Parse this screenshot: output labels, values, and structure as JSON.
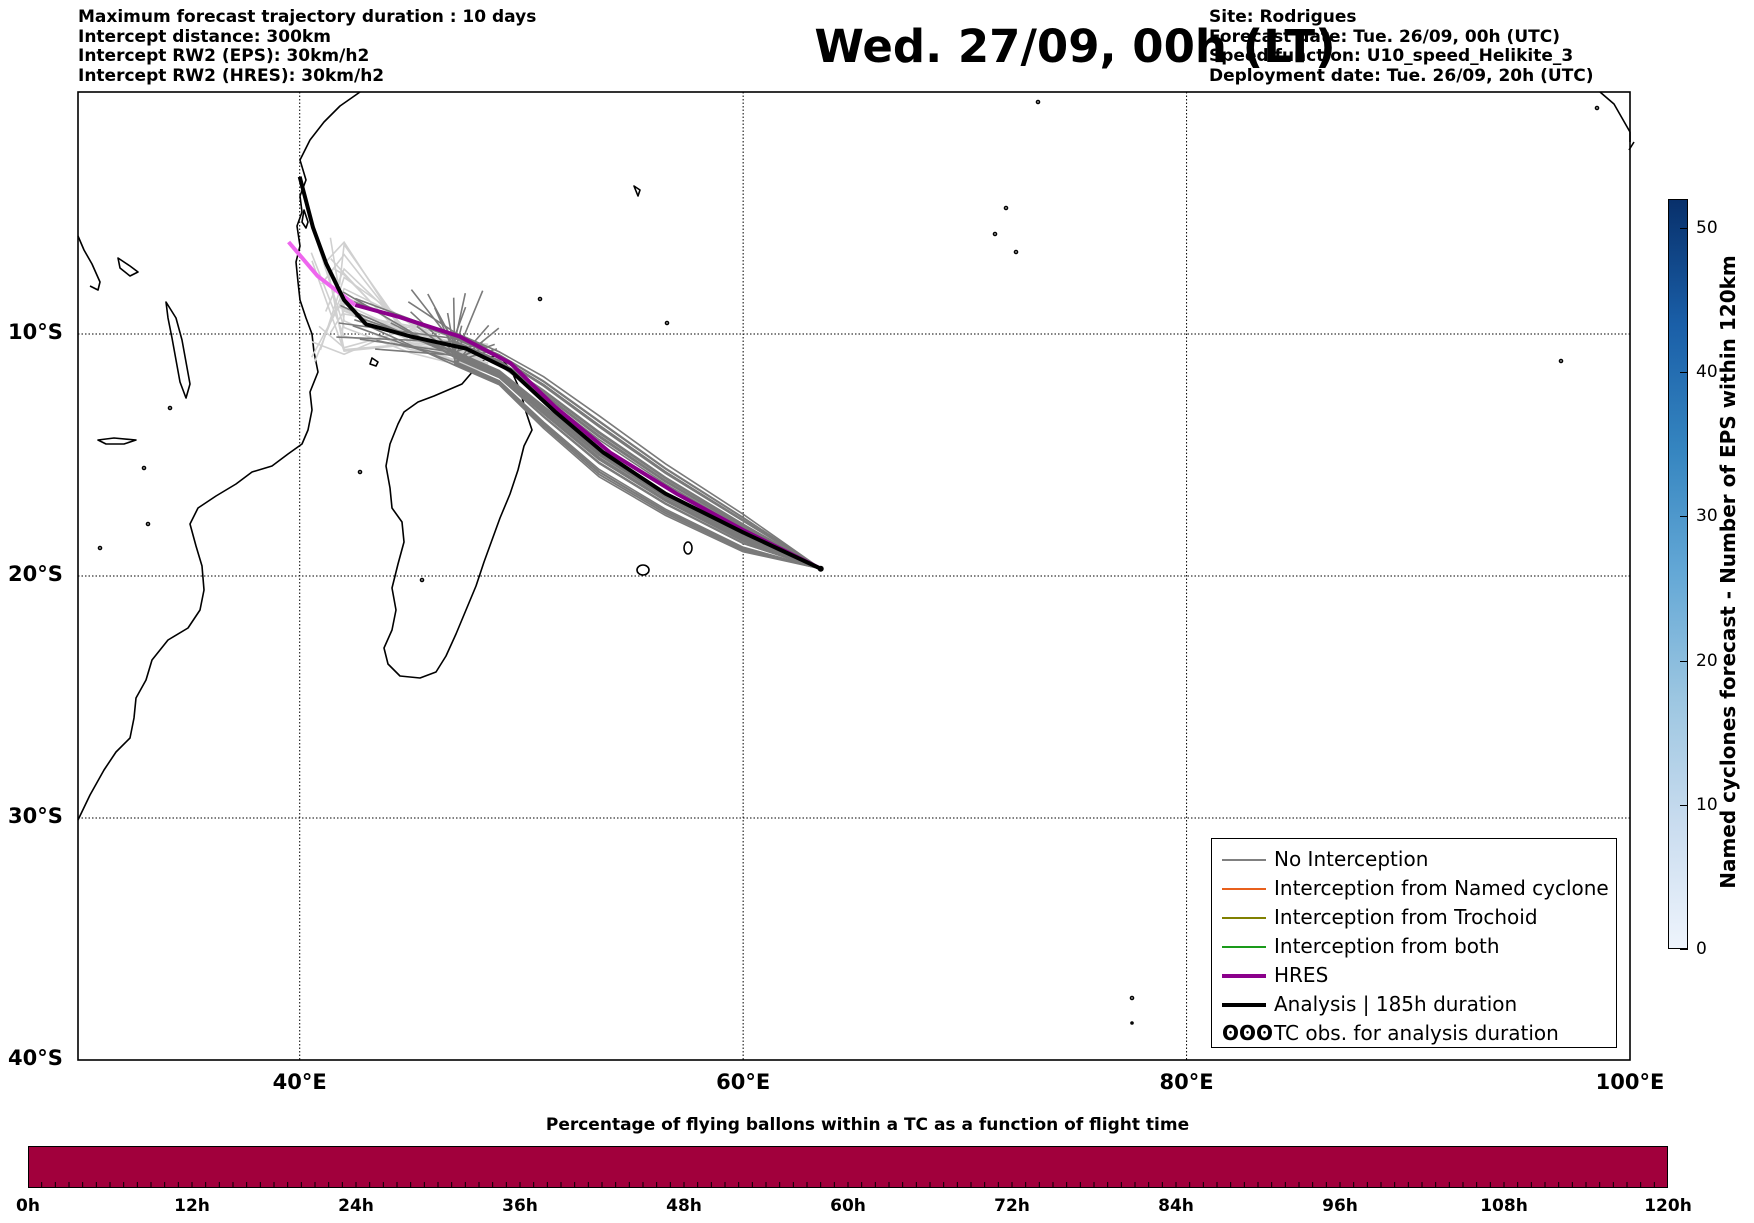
{
  "header_left": [
    "Maximum forecast trajectory duration : 10 days",
    "Intercept distance: 300km",
    "Intercept RW2 (EPS):  30km/h2",
    "Intercept RW2 (HRES): 30km/h2"
  ],
  "title": "Wed. 27/09, 00h (LT)",
  "header_right": [
    "Site: Rodrigues",
    "Forecast date: Tue. 26/09, 00h (UTC)",
    "Speed function: U10_speed_Helikite_3",
    "Deployment date: Tue. 26/09, 20h (UTC)"
  ],
  "map": {
    "lon_range": [
      30,
      100
    ],
    "lat_range": [
      -40,
      0
    ],
    "lat_ticks": [
      "10°S",
      "20°S",
      "30°S",
      "40°S"
    ],
    "lon_ticks": [
      "40°E",
      "60°E",
      "80°E",
      "100°E"
    ],
    "release_point": {
      "lon": 63.5,
      "lat": -19.7
    }
  },
  "legend": [
    {
      "label": "No Interception",
      "color": "#808080",
      "kind": "thin"
    },
    {
      "label": "Interception from Named cyclone",
      "color": "#e8601c",
      "kind": "thin"
    },
    {
      "label": "Interception from Trochoid",
      "color": "#808000",
      "kind": "thin"
    },
    {
      "label": "Interception from both",
      "color": "#1a9a1a",
      "kind": "thin"
    },
    {
      "label": "HRES",
      "color": "#8b008b",
      "kind": "thick"
    },
    {
      "label": "Analysis | 185h duration",
      "color": "#000000",
      "kind": "thick"
    },
    {
      "label": "TC obs. for analysis duration",
      "color": "#000000",
      "kind": "symbol",
      "symbol": "ʘʘʘ"
    }
  ],
  "colorbar_vertical": {
    "label": "Named cyclones forecast - Number of EPS within 120km",
    "ticks": [
      "0",
      "10",
      "20",
      "30",
      "40",
      "50"
    ],
    "range": [
      0,
      52
    ],
    "colors": [
      "#eef4fc",
      "#08306b"
    ]
  },
  "colorbar_horizontal": {
    "title": "Percentage of flying ballons within a TC as a function of flight time",
    "ticks": [
      "0h",
      "12h",
      "24h",
      "36h",
      "48h",
      "60h",
      "72h",
      "84h",
      "96h",
      "108h",
      "120h"
    ],
    "color": "#a1003c"
  },
  "tracks": {
    "analysis": [
      [
        63.5,
        -19.7
      ],
      [
        60,
        -18.2
      ],
      [
        56.5,
        -16.6
      ],
      [
        53.7,
        -14.9
      ],
      [
        51.5,
        -13.2
      ],
      [
        49.5,
        -11.5
      ],
      [
        47.5,
        -10.6
      ],
      [
        45,
        -10.1
      ],
      [
        43,
        -9.6
      ],
      [
        42,
        -8.6
      ],
      [
        41.2,
        -7.1
      ],
      [
        40.6,
        -5.6
      ],
      [
        40,
        -3.5
      ]
    ],
    "hres": [
      [
        63.5,
        -19.7
      ],
      [
        60,
        -18.1
      ],
      [
        57,
        -16.6
      ],
      [
        54,
        -14.9
      ],
      [
        51.5,
        -13
      ],
      [
        49.5,
        -11.2
      ],
      [
        47.2,
        -10.1
      ],
      [
        44.5,
        -9.3
      ],
      [
        42.5,
        -8.8
      ],
      [
        40.8,
        -7.6
      ],
      [
        39.5,
        -6.2
      ]
    ]
  }
}
